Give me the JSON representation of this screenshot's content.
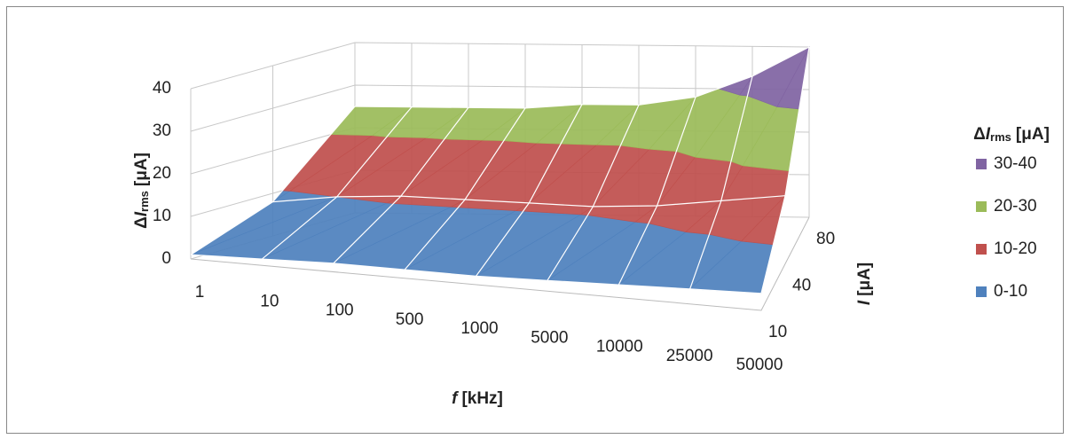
{
  "chart_data": {
    "type": "surface",
    "x_label": [
      "f",
      "[kHz]"
    ],
    "y_label": [
      "Δ",
      "I",
      "rms",
      "[μA]"
    ],
    "z_label": [
      "I",
      "[μA]"
    ],
    "categories": [
      "1",
      "10",
      "100",
      "500",
      "1000",
      "5000",
      "10000",
      "25000",
      "50000"
    ],
    "series": [
      {
        "name": "10",
        "values": [
          1,
          1.5,
          2,
          2,
          2,
          2.5,
          3,
          3.5,
          4
        ]
      },
      {
        "name": "40",
        "values": [
          8,
          10,
          11,
          11,
          11,
          11,
          12,
          14,
          16
        ]
      },
      {
        "name": "80",
        "values": [
          25,
          25,
          25,
          25,
          26,
          26,
          28,
          33,
          40
        ]
      }
    ],
    "ylim": [
      0,
      40
    ],
    "yticks": [
      0,
      10,
      20,
      30,
      40
    ],
    "grid": true,
    "legend_title": [
      "Δ",
      "I",
      "rms",
      "[μA]"
    ],
    "legend_position": "right",
    "bands": [
      {
        "name": "0-10",
        "color": "#4f81bd"
      },
      {
        "name": "10-20",
        "color": "#c0504d"
      },
      {
        "name": "20-30",
        "color": "#9bbb59"
      },
      {
        "name": "30-40",
        "color": "#8064a2"
      }
    ]
  }
}
